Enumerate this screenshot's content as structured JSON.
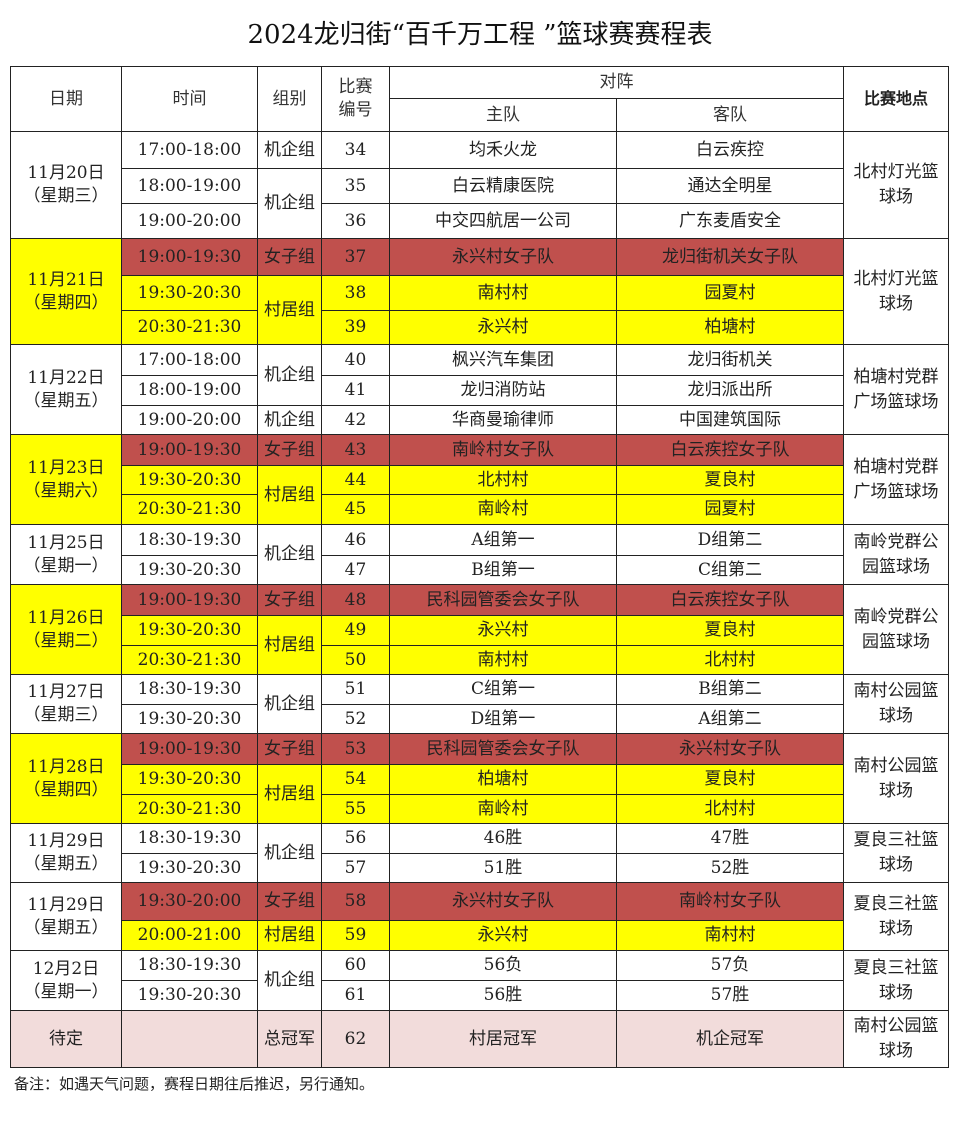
{
  "title": "2024龙归街“百千万工程 ”篮球赛赛程表",
  "headers": {
    "date": "日期",
    "time": "时间",
    "group": "组别",
    "match_no": "比赛编号",
    "matchup": "对阵",
    "home": "主队",
    "away": "客队",
    "venue": "比赛地点"
  },
  "colors": {
    "women": "#c0504d",
    "village": "#ffff00",
    "final": "#f2dcdb"
  },
  "days": [
    {
      "date": "11月20日",
      "weekday": "（星期三）",
      "highlight": false,
      "venue": "北村灯光篮球场",
      "groups": [
        {
          "label": "机企组",
          "type": "company",
          "matches": [
            {
              "time": "17:00-18:00",
              "no": "34",
              "home": "均禾火龙",
              "away": "白云疾控"
            }
          ]
        },
        {
          "label": "机企组",
          "type": "company",
          "matches": [
            {
              "time": "18:00-19:00",
              "no": "35",
              "home": "白云精康医院",
              "away": "通达全明星"
            },
            {
              "time": "19:00-20:00",
              "no": "36",
              "home": "中交四航居一公司",
              "away": "广东麦盾安全"
            }
          ]
        }
      ]
    },
    {
      "date": "11月21日",
      "weekday": "（星期四）",
      "highlight": true,
      "venue": "北村灯光篮球场",
      "groups": [
        {
          "label": "女子组",
          "type": "women",
          "matches": [
            {
              "time": "19:00-19:30",
              "no": "37",
              "home": "永兴村女子队",
              "away": "龙归街机关女子队"
            }
          ]
        },
        {
          "label": "村居组",
          "type": "village",
          "matches": [
            {
              "time": "19:30-20:30",
              "no": "38",
              "home": "南村村",
              "away": "园夏村"
            },
            {
              "time": "20:30-21:30",
              "no": "39",
              "home": "永兴村",
              "away": "柏塘村"
            }
          ]
        }
      ]
    },
    {
      "date": "11月22日",
      "weekday": "（星期五）",
      "highlight": false,
      "venue": "柏塘村党群广场篮球场",
      "groups": [
        {
          "label": "机企组",
          "type": "company",
          "matches": [
            {
              "time": "17:00-18:00",
              "no": "40",
              "home": "枫兴汽车集团",
              "away": "龙归街机关"
            },
            {
              "time": "18:00-19:00",
              "no": "41",
              "home": "龙归消防站",
              "away": "龙归派出所"
            }
          ]
        },
        {
          "label": "机企组",
          "type": "company",
          "matches": [
            {
              "time": "19:00-20:00",
              "no": "42",
              "home": "华商曼瑜律师",
              "away": "中国建筑国际"
            }
          ]
        }
      ]
    },
    {
      "date": "11月23日",
      "weekday": "（星期六）",
      "highlight": true,
      "venue": "柏塘村党群广场篮球场",
      "groups": [
        {
          "label": "女子组",
          "type": "women",
          "matches": [
            {
              "time": "19:00-19:30",
              "no": "43",
              "home": "南岭村女子队",
              "away": "白云疾控女子队"
            }
          ]
        },
        {
          "label": "村居组",
          "type": "village",
          "matches": [
            {
              "time": "19:30-20:30",
              "no": "44",
              "home": "北村村",
              "away": "夏良村"
            },
            {
              "time": "20:30-21:30",
              "no": "45",
              "home": "南岭村",
              "away": "园夏村"
            }
          ]
        }
      ]
    },
    {
      "date": "11月25日",
      "weekday": "（星期一）",
      "highlight": false,
      "venue": "南岭党群公园篮球场",
      "groups": [
        {
          "label": "机企组",
          "type": "company",
          "matches": [
            {
              "time": "18:30-19:30",
              "no": "46",
              "home": "A组第一",
              "away": "D组第二"
            },
            {
              "time": "19:30-20:30",
              "no": "47",
              "home": "B组第一",
              "away": "C组第二"
            }
          ]
        }
      ]
    },
    {
      "date": "11月26日",
      "weekday": "（星期二）",
      "highlight": true,
      "venue": "南岭党群公园篮球场",
      "groups": [
        {
          "label": "女子组",
          "type": "women",
          "matches": [
            {
              "time": "19:00-19:30",
              "no": "48",
              "home": "民科园管委会女子队",
              "away": "白云疾控女子队"
            }
          ]
        },
        {
          "label": "村居组",
          "type": "village",
          "matches": [
            {
              "time": "19:30-20:30",
              "no": "49",
              "home": "永兴村",
              "away": "夏良村"
            },
            {
              "time": "20:30-21:30",
              "no": "50",
              "home": "南村村",
              "away": "北村村"
            }
          ]
        }
      ]
    },
    {
      "date": "11月27日",
      "weekday": "（星期三）",
      "highlight": false,
      "venue": "南村公园篮球场",
      "groups": [
        {
          "label": "机企组",
          "type": "company",
          "matches": [
            {
              "time": "18:30-19:30",
              "no": "51",
              "home": "C组第一",
              "away": "B组第二"
            },
            {
              "time": "19:30-20:30",
              "no": "52",
              "home": "D组第一",
              "away": "A组第二"
            }
          ]
        }
      ]
    },
    {
      "date": "11月28日",
      "weekday": "（星期四）",
      "highlight": true,
      "venue": "南村公园篮球场",
      "groups": [
        {
          "label": "女子组",
          "type": "women",
          "matches": [
            {
              "time": "19:00-19:30",
              "no": "53",
              "home": "民科园管委会女子队",
              "away": "永兴村女子队"
            }
          ]
        },
        {
          "label": "村居组",
          "type": "village",
          "matches": [
            {
              "time": "19:30-20:30",
              "no": "54",
              "home": "柏塘村",
              "away": "夏良村"
            },
            {
              "time": "20:30-21:30",
              "no": "55",
              "home": "南岭村",
              "away": "北村村"
            }
          ]
        }
      ]
    },
    {
      "date": "11月29日",
      "weekday": "（星期五）",
      "highlight": false,
      "venue": "夏良三社篮球场",
      "groups": [
        {
          "label": "机企组",
          "type": "company",
          "matches": [
            {
              "time": "18:30-19:30",
              "no": "56",
              "home": "46胜",
              "away": "47胜"
            },
            {
              "time": "19:30-20:30",
              "no": "57",
              "home": "51胜",
              "away": "52胜"
            }
          ]
        }
      ]
    },
    {
      "date": "11月29日",
      "weekday": "（星期五）",
      "highlight": false,
      "venue": "夏良三社篮球场",
      "groups": [
        {
          "label": "女子组",
          "type": "women",
          "matches": [
            {
              "time": "19:30-20:00",
              "no": "58",
              "home": "永兴村女子队",
              "away": "南岭村女子队"
            }
          ]
        },
        {
          "label": "村居组",
          "type": "village",
          "matches": [
            {
              "time": "20:00-21:00",
              "no": "59",
              "home": "永兴村",
              "away": "南村村"
            }
          ]
        }
      ]
    },
    {
      "date": "12月2日",
      "weekday": "（星期一）",
      "highlight": false,
      "venue": "夏良三社篮球场",
      "groups": [
        {
          "label": "机企组",
          "type": "company",
          "matches": [
            {
              "time": "18:30-19:30",
              "no": "60",
              "home": "56负",
              "away": "57负"
            },
            {
              "time": "19:30-20:30",
              "no": "61",
              "home": "56胜",
              "away": "57胜"
            }
          ]
        }
      ]
    },
    {
      "date": "待定",
      "weekday": "",
      "highlight": false,
      "final": true,
      "venue": "南村公园篮球场",
      "groups": [
        {
          "label": "总冠军",
          "type": "final",
          "matches": [
            {
              "time": "",
              "no": "62",
              "home": "村居冠军",
              "away": "机企冠军"
            }
          ]
        }
      ]
    }
  ],
  "note": "备注：如遇天气问题，赛程日期往后推迟，另行通知。"
}
